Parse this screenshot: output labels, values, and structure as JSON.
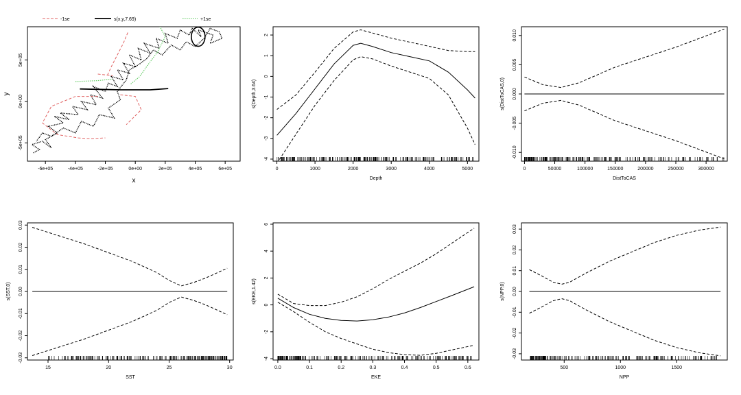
{
  "legend": [
    {
      "label": "-1se",
      "color": "#e06060",
      "style": "dashed"
    },
    {
      "label": "s(x,y,7.69)",
      "color": "#000000",
      "style": "solid"
    },
    {
      "label": "+1se",
      "color": "#66cc66",
      "style": "dotted"
    }
  ],
  "chart_data": [
    {
      "type": "line",
      "id": "spatial",
      "xlabel": "x",
      "ylabel": "y",
      "xlim": [
        -720000,
        700000
      ],
      "ylim": [
        -720000,
        900000
      ],
      "xticks": [
        -600000,
        -400000,
        -200000,
        0,
        200000,
        400000,
        600000
      ],
      "xtick_labels": [
        "-6e+05",
        "-4e+05",
        "-2e+05",
        "0e+00",
        "2e+05",
        "4e+05",
        "6e+05"
      ],
      "yticks": [
        -500000,
        0,
        500000
      ],
      "ytick_labels": [
        "-5e+05",
        "0e+00",
        "5e+05"
      ],
      "contours": [
        {
          "series": "s(x,y,7.69)",
          "points": [
            [
              -370000,
              150000
            ],
            [
              -100000,
              140000
            ],
            [
              100000,
              140000
            ],
            [
              220000,
              155000
            ]
          ]
        },
        {
          "series": "-1se",
          "points": [
            [
              -250000,
              330000
            ],
            [
              -200000,
              320000
            ],
            [
              -150000,
              310000
            ]
          ]
        },
        {
          "series": "-1se",
          "points": [
            [
              -50000,
              830000
            ],
            [
              -80000,
              700000
            ],
            [
              -120000,
              560000
            ],
            [
              -160000,
              420000
            ],
            [
              -190000,
              300000
            ]
          ]
        },
        {
          "series": "-1se",
          "points": [
            [
              -250000,
              60000
            ],
            [
              -400000,
              60000
            ],
            [
              -560000,
              -60000
            ],
            [
              -620000,
              -260000
            ],
            [
              -520000,
              -400000
            ],
            [
              -380000,
              -440000
            ],
            [
              -300000,
              -450000
            ],
            [
              -200000,
              -440000
            ]
          ]
        },
        {
          "series": "-1se",
          "points": [
            [
              -100000,
              80000
            ],
            [
              0,
              60000
            ],
            [
              40000,
              -100000
            ],
            [
              -60000,
              -280000
            ]
          ]
        },
        {
          "series": "+1se",
          "points": [
            [
              150000,
              950000
            ],
            [
              200000,
              780000
            ],
            [
              150000,
              600000
            ],
            [
              80000,
              430000
            ],
            [
              30000,
              300000
            ],
            [
              -30000,
              210000
            ]
          ]
        },
        {
          "series": "+1se",
          "points": [
            [
              -400000,
              240000
            ],
            [
              -250000,
              250000
            ],
            [
              -150000,
              270000
            ]
          ]
        }
      ],
      "track": [
        [
          -680000,
          -620000
        ],
        [
          -640000,
          -580000
        ],
        [
          -690000,
          -520000
        ],
        [
          -620000,
          -480000
        ],
        [
          -560000,
          -560000
        ],
        [
          -600000,
          -460000
        ],
        [
          -520000,
          -380000
        ],
        [
          -580000,
          -300000
        ],
        [
          -480000,
          -260000
        ],
        [
          -540000,
          -180000
        ],
        [
          -440000,
          -220000
        ],
        [
          -500000,
          -140000
        ],
        [
          -380000,
          -160000
        ],
        [
          -420000,
          -60000
        ],
        [
          -320000,
          -100000
        ],
        [
          -360000,
          0
        ],
        [
          -260000,
          -40000
        ],
        [
          -300000,
          80000
        ],
        [
          -220000,
          40000
        ],
        [
          -280000,
          180000
        ],
        [
          -200000,
          120000
        ],
        [
          -180000,
          220000
        ],
        [
          -120000,
          180000
        ],
        [
          -160000,
          300000
        ],
        [
          -80000,
          260000
        ],
        [
          -120000,
          380000
        ],
        [
          -40000,
          340000
        ],
        [
          -80000,
          460000
        ],
        [
          0,
          420000
        ],
        [
          -40000,
          560000
        ],
        [
          40000,
          500000
        ],
        [
          20000,
          640000
        ],
        [
          100000,
          580000
        ],
        [
          60000,
          700000
        ],
        [
          160000,
          640000
        ],
        [
          140000,
          760000
        ],
        [
          220000,
          700000
        ],
        [
          200000,
          820000
        ],
        [
          280000,
          760000
        ],
        [
          300000,
          860000
        ],
        [
          360000,
          800000
        ],
        [
          380000,
          880000
        ],
        [
          440000,
          780000
        ],
        [
          420000,
          860000
        ],
        [
          520000,
          800000
        ],
        [
          500000,
          700000
        ],
        [
          580000,
          760000
        ],
        [
          560000,
          840000
        ],
        [
          500000,
          880000
        ],
        [
          460000,
          760000
        ],
        [
          400000,
          660000
        ],
        [
          340000,
          720000
        ],
        [
          300000,
          620000
        ],
        [
          240000,
          680000
        ],
        [
          180000,
          560000
        ],
        [
          120000,
          620000
        ],
        [
          80000,
          520000
        ],
        [
          20000,
          440000
        ],
        [
          -40000,
          380000
        ],
        [
          -60000,
          260000
        ],
        [
          -120000,
          120000
        ],
        [
          -100000,
          20000
        ],
        [
          -180000,
          -80000
        ],
        [
          -140000,
          -200000
        ],
        [
          -240000,
          -160000
        ],
        [
          -280000,
          -300000
        ],
        [
          -360000,
          -240000
        ],
        [
          -400000,
          -380000
        ],
        [
          -480000,
          -320000
        ],
        [
          -560000,
          -420000
        ],
        [
          -620000,
          -380000
        ],
        [
          -660000,
          -480000
        ]
      ]
    },
    {
      "type": "line",
      "id": "depth",
      "xlabel": "Depth",
      "ylabel": "s(Depth,3.64)",
      "xlim": [
        -100,
        5300
      ],
      "ylim": [
        -4.1,
        2.4
      ],
      "xticks": [
        0,
        1000,
        2000,
        3000,
        4000,
        5000
      ],
      "yticks": [
        -4,
        -3,
        -2,
        -1,
        0,
        1,
        2
      ],
      "series": [
        {
          "name": "s(Depth,3.64)",
          "style": "solid",
          "x": [
            0,
            500,
            1000,
            1500,
            2000,
            2200,
            2500,
            3000,
            3500,
            4000,
            4500,
            5000,
            5200
          ],
          "y": [
            -2.85,
            -1.8,
            -0.6,
            0.6,
            1.5,
            1.6,
            1.45,
            1.15,
            0.95,
            0.75,
            0.2,
            -0.65,
            -1.05
          ]
        },
        {
          "name": "+1se",
          "style": "dashed",
          "x": [
            0,
            500,
            1000,
            1500,
            2000,
            2200,
            2500,
            3000,
            3500,
            4000,
            4500,
            5000,
            5200
          ],
          "y": [
            -1.6,
            -0.9,
            0.2,
            1.35,
            2.15,
            2.25,
            2.1,
            1.85,
            1.65,
            1.45,
            1.25,
            1.2,
            1.2
          ]
        },
        {
          "name": "-1se",
          "style": "dashed",
          "x": [
            0,
            500,
            1000,
            1500,
            2000,
            2200,
            2500,
            3000,
            3500,
            4000,
            4500,
            5000,
            5200
          ],
          "y": [
            -4.2,
            -2.8,
            -1.4,
            -0.2,
            0.8,
            0.95,
            0.85,
            0.5,
            0.2,
            -0.1,
            -0.9,
            -2.5,
            -3.3
          ]
        }
      ],
      "rug_range": [
        0,
        5200
      ],
      "rug_count": 240
    },
    {
      "type": "line",
      "id": "disttocas",
      "xlabel": "DistToCAS",
      "ylabel": "s(DistToCAS,0)",
      "xlim": [
        -5000,
        335000
      ],
      "ylim": [
        -0.0115,
        0.0115
      ],
      "xticks": [
        0,
        50000,
        100000,
        150000,
        200000,
        250000,
        300000
      ],
      "yticks": [
        -0.01,
        -0.005,
        0,
        0.005,
        0.01
      ],
      "ytick_labels": [
        "-0.010",
        "-0.005",
        "0.000",
        "0.005",
        "0.010"
      ],
      "series": [
        {
          "name": "s(DistToCAS,0)",
          "style": "solid",
          "x": [
            0,
            330000
          ],
          "y": [
            0,
            0
          ]
        },
        {
          "name": "+1se",
          "style": "dashed",
          "x": [
            0,
            30000,
            60000,
            90000,
            150000,
            250000,
            330000
          ],
          "y": [
            0.0029,
            0.0016,
            0.0011,
            0.0019,
            0.0046,
            0.008,
            0.0111
          ]
        },
        {
          "name": "-1se",
          "style": "dashed",
          "x": [
            0,
            30000,
            60000,
            90000,
            150000,
            250000,
            330000
          ],
          "y": [
            -0.0029,
            -0.0016,
            -0.0011,
            -0.0019,
            -0.0046,
            -0.008,
            -0.0111
          ]
        }
      ],
      "rug_range": [
        0,
        330000
      ],
      "rug_count": 240
    },
    {
      "type": "line",
      "id": "sst",
      "xlabel": "SST",
      "ylabel": "s(SST,0)",
      "xlim": [
        13.3,
        30.3
      ],
      "ylim": [
        -0.031,
        0.031
      ],
      "xticks": [
        15,
        20,
        25,
        30
      ],
      "yticks": [
        -0.03,
        -0.02,
        -0.01,
        0,
        0.01,
        0.02,
        0.03
      ],
      "ytick_labels": [
        "-0.03",
        "-0.02",
        "-0.01",
        "0.00",
        "0.01",
        "0.02",
        "0.03"
      ],
      "series": [
        {
          "name": "s(SST,0)",
          "style": "solid",
          "x": [
            13.7,
            29.8
          ],
          "y": [
            0,
            0
          ]
        },
        {
          "name": "+1se",
          "style": "dashed",
          "x": [
            13.7,
            16,
            18,
            20,
            22,
            24,
            25,
            26,
            27,
            28,
            29.8
          ],
          "y": [
            0.029,
            0.025,
            0.0215,
            0.0175,
            0.0135,
            0.0085,
            0.005,
            0.0025,
            0.004,
            0.006,
            0.0105
          ]
        },
        {
          "name": "-1se",
          "style": "dashed",
          "x": [
            13.7,
            16,
            18,
            20,
            22,
            24,
            25,
            26,
            27,
            28,
            29.8
          ],
          "y": [
            -0.029,
            -0.025,
            -0.0215,
            -0.0175,
            -0.0135,
            -0.0085,
            -0.005,
            -0.0025,
            -0.004,
            -0.006,
            -0.0105
          ]
        }
      ],
      "rug_range": [
        15,
        29.8
      ],
      "rug_count": 220
    },
    {
      "type": "line",
      "id": "eke",
      "xlabel": "EKE",
      "ylabel": "s(EKE,1.42)",
      "xlim": [
        -0.015,
        0.635
      ],
      "ylim": [
        -4.1,
        6.1
      ],
      "xticks": [
        0,
        0.1,
        0.2,
        0.3,
        0.4,
        0.5,
        0.6
      ],
      "xtick_labels": [
        "0.0",
        "0.1",
        "0.2",
        "0.3",
        "0.4",
        "0.5",
        "0.6"
      ],
      "yticks": [
        -4,
        -2,
        0,
        2,
        4,
        6
      ],
      "series": [
        {
          "name": "s(EKE,1.42)",
          "style": "solid",
          "x": [
            0,
            0.05,
            0.1,
            0.15,
            0.2,
            0.25,
            0.3,
            0.35,
            0.4,
            0.45,
            0.5,
            0.55,
            0.62
          ],
          "y": [
            0.5,
            -0.2,
            -0.7,
            -1.0,
            -1.15,
            -1.2,
            -1.1,
            -0.9,
            -0.6,
            -0.2,
            0.25,
            0.7,
            1.35
          ]
        },
        {
          "name": "+1se",
          "style": "dashed",
          "x": [
            0,
            0.05,
            0.1,
            0.15,
            0.2,
            0.25,
            0.3,
            0.35,
            0.4,
            0.45,
            0.5,
            0.55,
            0.62
          ],
          "y": [
            0.8,
            0.1,
            -0.05,
            -0.05,
            0.2,
            0.6,
            1.2,
            1.9,
            2.5,
            3.1,
            3.8,
            4.6,
            5.7
          ]
        },
        {
          "name": "-1se",
          "style": "dashed",
          "x": [
            0,
            0.05,
            0.1,
            0.15,
            0.2,
            0.25,
            0.3,
            0.35,
            0.4,
            0.45,
            0.5,
            0.55,
            0.62
          ],
          "y": [
            0.2,
            -0.5,
            -1.3,
            -2.0,
            -2.5,
            -2.9,
            -3.3,
            -3.55,
            -3.7,
            -3.75,
            -3.6,
            -3.35,
            -3.0
          ]
        }
      ],
      "rug_range": [
        0,
        0.62
      ],
      "rug_count": 240
    },
    {
      "type": "line",
      "id": "npp",
      "xlabel": "NPP",
      "ylabel": "s(NPP,0)",
      "xlim": [
        120,
        1950
      ],
      "ylim": [
        -0.033,
        0.033
      ],
      "xticks": [
        500,
        1000,
        1500
      ],
      "yticks": [
        -0.03,
        -0.02,
        -0.01,
        0,
        0.01,
        0.02,
        0.03
      ],
      "ytick_labels": [
        "-0.03",
        "-0.02",
        "-0.01",
        "0.00",
        "0.01",
        "0.02",
        "0.03"
      ],
      "series": [
        {
          "name": "s(NPP,0)",
          "style": "solid",
          "x": [
            190,
            1890
          ],
          "y": [
            0,
            0
          ]
        },
        {
          "name": "+1se",
          "style": "dashed",
          "x": [
            190,
            300,
            400,
            480,
            550,
            700,
            900,
            1100,
            1300,
            1500,
            1700,
            1890
          ],
          "y": [
            0.0105,
            0.0075,
            0.0045,
            0.0035,
            0.0045,
            0.009,
            0.0145,
            0.019,
            0.0235,
            0.027,
            0.0295,
            0.031
          ]
        },
        {
          "name": "-1se",
          "style": "dashed",
          "x": [
            190,
            300,
            400,
            480,
            550,
            700,
            900,
            1100,
            1300,
            1500,
            1700,
            1890
          ],
          "y": [
            -0.0105,
            -0.0075,
            -0.0045,
            -0.0035,
            -0.0045,
            -0.009,
            -0.0145,
            -0.019,
            -0.0235,
            -0.027,
            -0.0295,
            -0.031
          ]
        }
      ],
      "rug_range": [
        200,
        1890
      ],
      "rug_count": 230
    }
  ]
}
